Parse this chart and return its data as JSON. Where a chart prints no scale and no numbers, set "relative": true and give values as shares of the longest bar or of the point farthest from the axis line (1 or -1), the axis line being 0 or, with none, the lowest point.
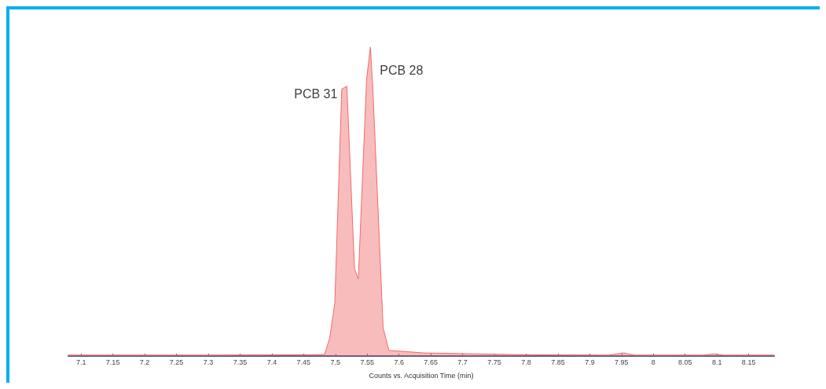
{
  "chart_data": {
    "type": "area",
    "relative": true,
    "xlabel": "Counts vs. Acquisition Time (min)",
    "xlim": [
      7.08,
      8.19
    ],
    "xticks": [
      7.1,
      7.15,
      7.2,
      7.25,
      7.3,
      7.35,
      7.4,
      7.45,
      7.5,
      7.55,
      7.6,
      7.65,
      7.7,
      7.75,
      7.8,
      7.85,
      7.9,
      7.95,
      8,
      8.05,
      8.1,
      8.15
    ],
    "series": [
      {
        "color": "#f06a6a",
        "x": [
          7.08,
          7.3,
          7.46,
          7.483,
          7.491,
          7.499,
          7.51,
          7.518,
          7.53,
          7.536,
          7.549,
          7.555,
          7.559,
          7.575,
          7.584,
          7.639,
          7.8,
          7.93,
          7.953,
          7.97,
          8.08,
          8.095,
          8.11,
          8.19
        ],
        "values": [
          0.003,
          0.003,
          0.004,
          0.005,
          0.058,
          0.17,
          0.864,
          0.873,
          0.283,
          0.249,
          0.895,
          1.0,
          0.86,
          0.092,
          0.018,
          0.01,
          0.004,
          0.003,
          0.01,
          0.003,
          0.003,
          0.007,
          0.003,
          0.003
        ]
      }
    ],
    "annotations": [
      {
        "text": "PCB 31",
        "x": 7.518,
        "y": 0.873
      },
      {
        "text": "PCB 28",
        "x": 7.555,
        "y": 1.0
      }
    ],
    "grid": false,
    "marker": "none"
  }
}
